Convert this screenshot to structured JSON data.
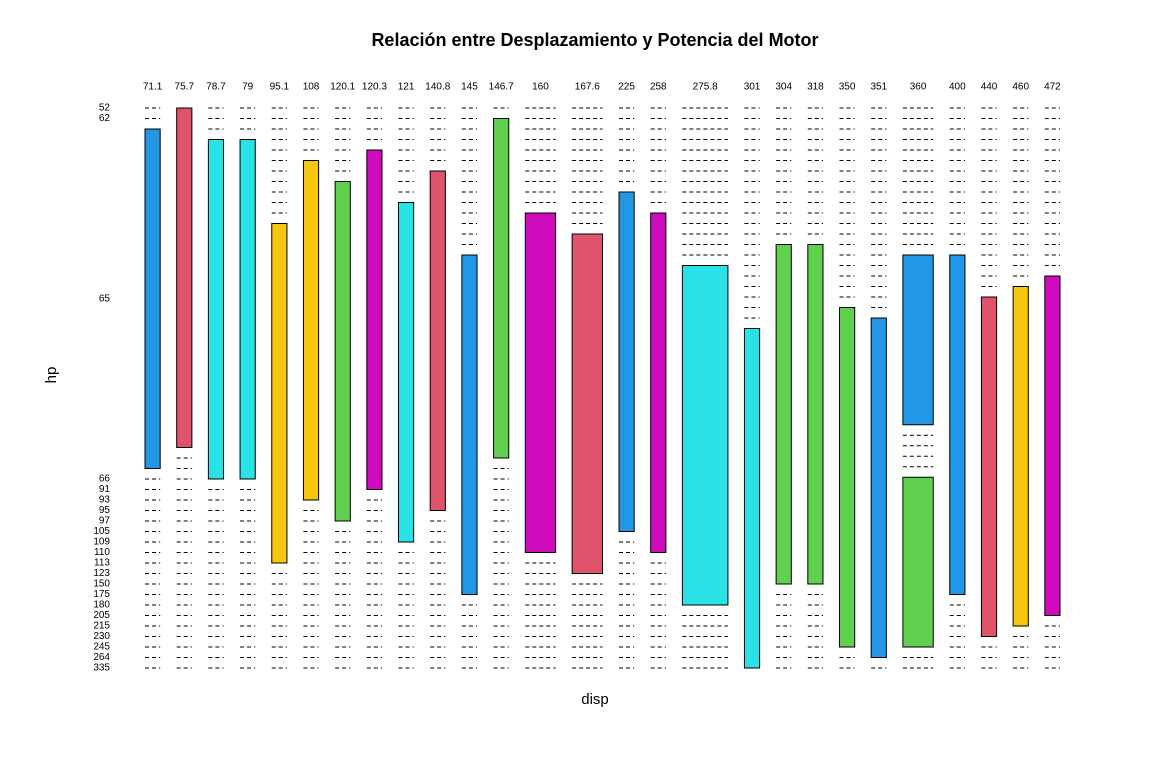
{
  "chart_data": {
    "type": "mosaic",
    "title": "Relación entre Desplazamiento y Potencia del Motor",
    "xlabel": "disp",
    "ylabel": "hp",
    "categories": [
      "71.1",
      "75.7",
      "78.7",
      "79",
      "95.1",
      "108",
      "120.1",
      "120.3",
      "121",
      "140.8",
      "145",
      "146.7",
      "160",
      "167.6",
      "225",
      "258",
      "275.8",
      "301",
      "304",
      "318",
      "350",
      "351",
      "360",
      "400",
      "440",
      "460",
      "472"
    ],
    "rows": [
      "52",
      "62",
      "65",
      "66",
      "91",
      "93",
      "95",
      "97",
      "105",
      "109",
      "110",
      "113",
      "123",
      "150",
      "175",
      "180",
      "205",
      "215",
      "230",
      "245",
      "264",
      "335"
    ],
    "colors": [
      "#df536b",
      "#61d04f",
      "#2297e6",
      "#28e2e5",
      "#cd0bbc",
      "#f5c710",
      "#df536b",
      "#61d04f",
      "#2297e6",
      "#28e2e5",
      "#cd0bbc",
      "#f5c710",
      "#df536b",
      "#61d04f",
      "#2297e6",
      "#28e2e5",
      "#cd0bbc",
      "#f5c710",
      "#df536b",
      "#61d04f",
      "#2297e6",
      "#28e2e5"
    ],
    "counts": [
      [
        0,
        0,
        1,
        0,
        0,
        0,
        0,
        0,
        0,
        0,
        0,
        0,
        0,
        0,
        0,
        0,
        0,
        0,
        0,
        0,
        0,
        0
      ],
      [
        1,
        0,
        0,
        0,
        0,
        0,
        0,
        0,
        0,
        0,
        0,
        0,
        0,
        0,
        0,
        0,
        0,
        0,
        0,
        0,
        0,
        0
      ],
      [
        0,
        0,
        0,
        1,
        0,
        0,
        0,
        0,
        0,
        0,
        0,
        0,
        0,
        0,
        0,
        0,
        0,
        0,
        0,
        0,
        0,
        0
      ],
      [
        0,
        0,
        0,
        1,
        0,
        0,
        0,
        0,
        0,
        0,
        0,
        0,
        0,
        0,
        0,
        0,
        0,
        0,
        0,
        0,
        0,
        0
      ],
      [
        0,
        0,
        0,
        0,
        0,
        0,
        0,
        0,
        0,
        0,
        0,
        1,
        0,
        0,
        0,
        0,
        0,
        0,
        0,
        0,
        0,
        0
      ],
      [
        0,
        0,
        0,
        0,
        0,
        1,
        0,
        0,
        0,
        0,
        0,
        0,
        0,
        0,
        0,
        0,
        0,
        0,
        0,
        0,
        0,
        0
      ],
      [
        0,
        0,
        0,
        0,
        0,
        0,
        0,
        1,
        0,
        0,
        0,
        0,
        0,
        0,
        0,
        0,
        0,
        0,
        0,
        0,
        0,
        0
      ],
      [
        0,
        0,
        0,
        0,
        1,
        0,
        0,
        0,
        0,
        0,
        0,
        0,
        0,
        0,
        0,
        0,
        0,
        0,
        0,
        0,
        0,
        0
      ],
      [
        0,
        0,
        0,
        0,
        0,
        0,
        0,
        0,
        0,
        1,
        0,
        0,
        0,
        0,
        0,
        0,
        0,
        0,
        0,
        0,
        0,
        0
      ],
      [
        0,
        0,
        0,
        0,
        0,
        0,
        1,
        0,
        0,
        0,
        0,
        0,
        0,
        0,
        0,
        0,
        0,
        0,
        0,
        0,
        0,
        0
      ],
      [
        0,
        0,
        0,
        0,
        0,
        0,
        0,
        0,
        0,
        0,
        0,
        0,
        0,
        0,
        1,
        0,
        0,
        0,
        0,
        0,
        0,
        0
      ],
      [
        0,
        1,
        0,
        0,
        0,
        0,
        0,
        0,
        0,
        0,
        0,
        0,
        0,
        0,
        0,
        0,
        0,
        0,
        0,
        0,
        0,
        0
      ],
      [
        0,
        0,
        0,
        0,
        0,
        0,
        0,
        0,
        0,
        0,
        2,
        0,
        0,
        0,
        0,
        0,
        0,
        0,
        0,
        0,
        0,
        0
      ],
      [
        0,
        0,
        0,
        0,
        0,
        0,
        0,
        0,
        0,
        0,
        0,
        0,
        2,
        0,
        0,
        0,
        0,
        0,
        0,
        0,
        0,
        0
      ],
      [
        0,
        0,
        0,
        0,
        0,
        0,
        0,
        0,
        1,
        0,
        0,
        0,
        0,
        0,
        0,
        0,
        0,
        0,
        0,
        0,
        0,
        0
      ],
      [
        0,
        0,
        0,
        0,
        0,
        0,
        0,
        0,
        0,
        0,
        1,
        0,
        0,
        0,
        0,
        0,
        0,
        0,
        0,
        0,
        0,
        0
      ],
      [
        0,
        0,
        0,
        0,
        0,
        0,
        0,
        0,
        0,
        0,
        0,
        0,
        0,
        0,
        0,
        3,
        0,
        0,
        0,
        0,
        0,
        0
      ],
      [
        0,
        0,
        0,
        0,
        0,
        0,
        0,
        0,
        0,
        0,
        0,
        0,
        0,
        0,
        0,
        0,
        0,
        0,
        0,
        0,
        0,
        1
      ],
      [
        0,
        0,
        0,
        0,
        0,
        0,
        0,
        0,
        0,
        0,
        0,
        0,
        0,
        1,
        0,
        0,
        0,
        0,
        0,
        0,
        0,
        0
      ],
      [
        0,
        0,
        0,
        0,
        0,
        0,
        0,
        0,
        0,
        0,
        0,
        0,
        0,
        1,
        0,
        0,
        0,
        0,
        0,
        0,
        0,
        0
      ],
      [
        0,
        0,
        0,
        0,
        0,
        0,
        0,
        0,
        0,
        0,
        0,
        0,
        0,
        0,
        0,
        0,
        0,
        0,
        0,
        1,
        0,
        0
      ],
      [
        0,
        0,
        0,
        0,
        0,
        0,
        0,
        0,
        0,
        0,
        0,
        0,
        0,
        0,
        0,
        0,
        0,
        0,
        0,
        0,
        1,
        0
      ],
      [
        0,
        0,
        0,
        0,
        0,
        0,
        0,
        0,
        0,
        0,
        0,
        0,
        0,
        0,
        1,
        0,
        0,
        0,
        0,
        1,
        0,
        0
      ],
      [
        0,
        0,
        0,
        0,
        0,
        0,
        0,
        0,
        0,
        0,
        0,
        0,
        0,
        0,
        1,
        0,
        0,
        0,
        0,
        0,
        0,
        0
      ],
      [
        0,
        0,
        0,
        0,
        0,
        0,
        0,
        0,
        0,
        0,
        0,
        0,
        0,
        0,
        0,
        0,
        0,
        0,
        1,
        0,
        0,
        0
      ],
      [
        0,
        0,
        0,
        0,
        0,
        0,
        0,
        0,
        0,
        0,
        0,
        0,
        0,
        0,
        0,
        0,
        0,
        1,
        0,
        0,
        0,
        0
      ],
      [
        0,
        0,
        0,
        0,
        0,
        0,
        0,
        0,
        0,
        0,
        0,
        0,
        0,
        0,
        0,
        0,
        1,
        0,
        0,
        0,
        0,
        0
      ]
    ]
  }
}
